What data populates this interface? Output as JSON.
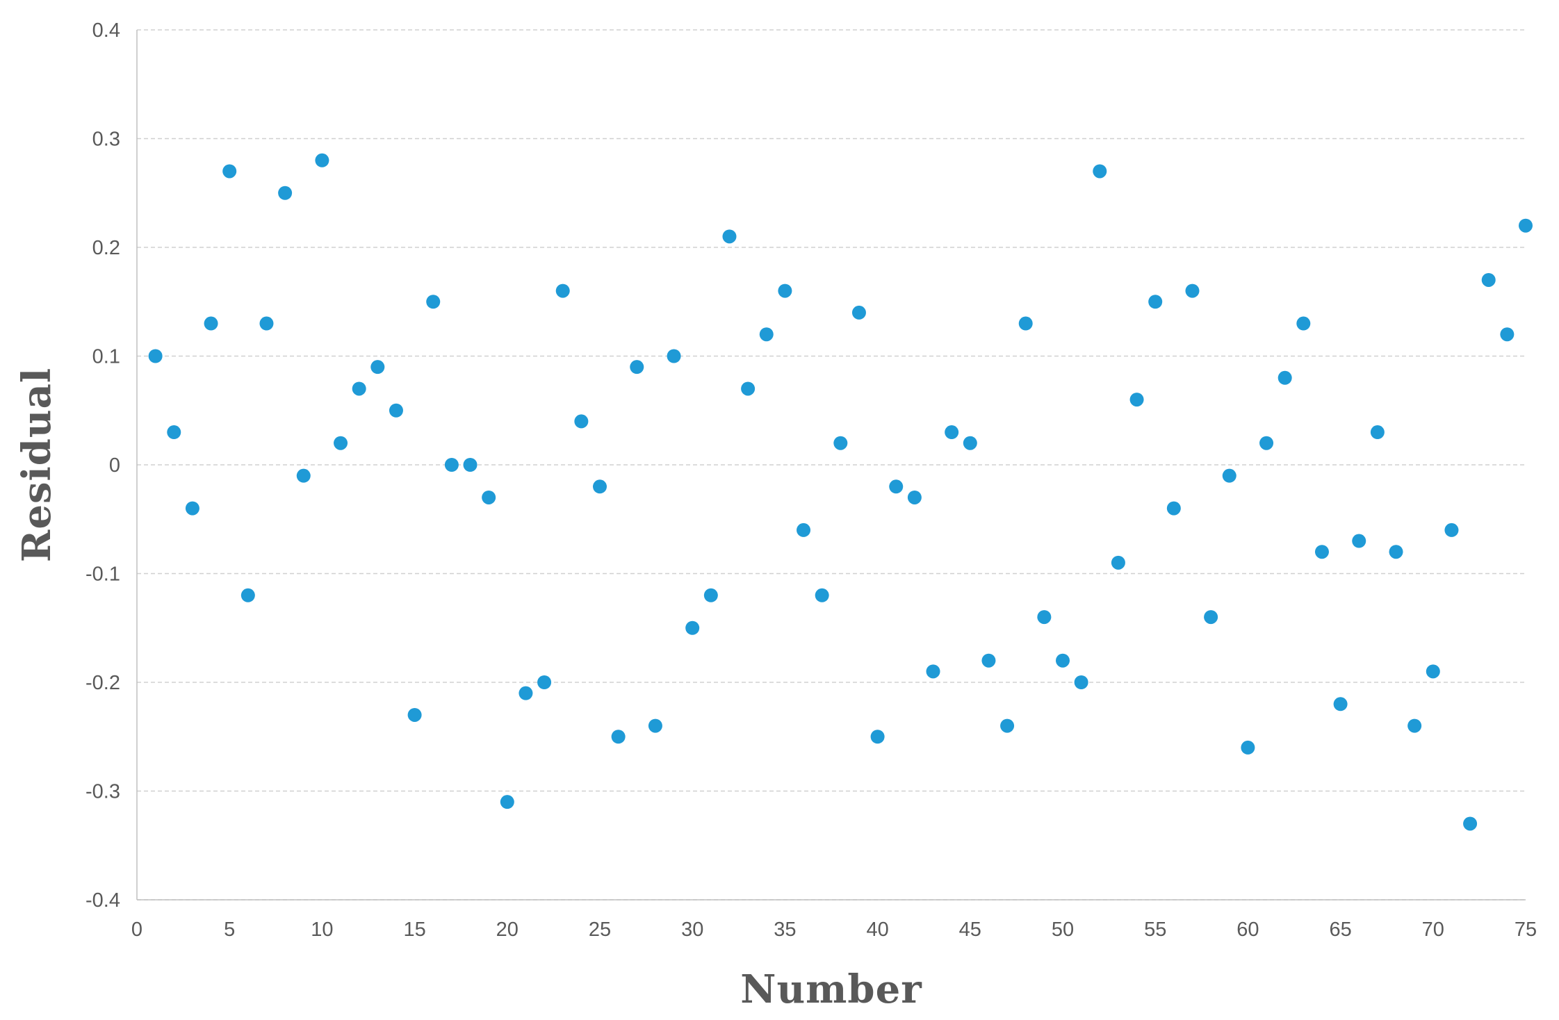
{
  "chart_data": {
    "type": "scatter",
    "title": "",
    "xlabel": "Number",
    "ylabel": "Residual",
    "xlim": [
      0,
      75
    ],
    "ylim": [
      -0.4,
      0.4
    ],
    "x_ticks": [
      0,
      5,
      10,
      15,
      20,
      25,
      30,
      35,
      40,
      45,
      50,
      55,
      60,
      65,
      70,
      75
    ],
    "y_ticks": [
      -0.4,
      -0.3,
      -0.2,
      -0.1,
      0,
      0.1,
      0.2,
      0.3,
      0.4
    ],
    "x_tick_labels": [
      "0",
      "5",
      "10",
      "15",
      "20",
      "25",
      "30",
      "35",
      "40",
      "45",
      "50",
      "55",
      "60",
      "65",
      "70",
      "75"
    ],
    "y_tick_labels": [
      "-0.4",
      "-0.3",
      "-0.2",
      "-0.1",
      "0",
      "0.1",
      "0.2",
      "0.3",
      "0.4"
    ],
    "grid": true,
    "marker_color": "#1f9ad6",
    "series": [
      {
        "x": [
          1,
          2,
          3,
          4,
          5,
          6,
          7,
          8,
          9,
          10,
          11,
          12,
          13,
          14,
          15,
          16,
          17,
          18,
          19,
          20,
          21,
          22,
          23,
          24,
          25,
          26,
          27,
          28,
          29,
          30,
          31,
          32,
          33,
          34,
          35,
          36,
          37,
          38,
          39,
          40,
          41,
          42,
          43,
          44,
          45,
          46,
          47,
          48,
          49,
          50,
          51,
          52,
          53,
          54,
          55,
          56,
          57,
          58,
          59,
          60,
          61,
          62,
          63,
          64,
          65,
          66,
          67,
          68,
          69,
          70,
          71,
          72,
          73,
          74,
          75
        ],
        "y": [
          0.1,
          0.03,
          -0.04,
          0.13,
          0.27,
          -0.12,
          0.13,
          0.25,
          -0.01,
          0.28,
          0.02,
          0.07,
          0.09,
          0.05,
          -0.23,
          0.15,
          0.0,
          0.0,
          -0.03,
          -0.31,
          -0.21,
          -0.2,
          0.16,
          0.04,
          -0.02,
          -0.25,
          0.09,
          -0.24,
          0.1,
          -0.15,
          -0.12,
          0.21,
          0.07,
          0.12,
          0.16,
          -0.06,
          -0.12,
          0.02,
          0.14,
          -0.25,
          -0.02,
          -0.03,
          -0.19,
          0.03,
          0.02,
          -0.18,
          -0.24,
          0.13,
          -0.14,
          -0.18,
          -0.2,
          0.27,
          -0.09,
          0.06,
          0.15,
          -0.04,
          0.16,
          -0.14,
          -0.01,
          -0.26,
          0.02,
          0.08,
          0.13,
          -0.08,
          -0.22,
          -0.07,
          0.03,
          -0.08,
          -0.24,
          -0.19,
          -0.06,
          -0.33,
          0.17,
          0.12,
          0.22
        ]
      }
    ]
  }
}
